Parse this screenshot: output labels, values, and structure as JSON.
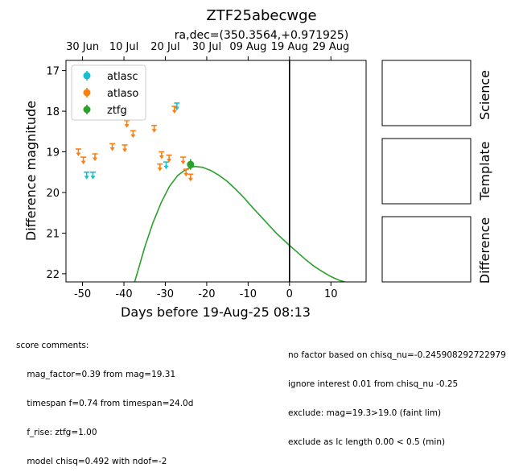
{
  "chart_data": {
    "type": "scatter",
    "title": "ZTF25abecwge",
    "subtitle": "ra,dec=(350.3564,+0.971925)",
    "xlabel": "Days before 19-Aug-25 08:13",
    "ylabel": "Difference magnitude",
    "xlim": [
      -54,
      18.5
    ],
    "ylim": [
      22.2,
      16.75
    ],
    "x_ticks": [
      -50,
      -40,
      -30,
      -20,
      -10,
      0,
      10
    ],
    "y_ticks": [
      17,
      18,
      19,
      20,
      21,
      22
    ],
    "top_ticks": [
      {
        "label": "30 Jun",
        "x": -50
      },
      {
        "label": "10 Jul",
        "x": -40
      },
      {
        "label": "20 Jul",
        "x": -30
      },
      {
        "label": "30 Jul",
        "x": -20
      },
      {
        "label": "09 Aug",
        "x": -10
      },
      {
        "label": "19 Aug",
        "x": 0
      },
      {
        "label": "29 Aug",
        "x": 10
      }
    ],
    "vline_x": 0,
    "legend_position": "upper left",
    "series": [
      {
        "name": "atlasc",
        "color": "#17becf",
        "kind": "upper_limit",
        "points": [
          [
            -49.0,
            19.5
          ],
          [
            -47.5,
            19.5
          ],
          [
            -29.8,
            19.25
          ],
          [
            -27.2,
            17.8
          ]
        ]
      },
      {
        "name": "atlaso",
        "color": "#ff7f0e",
        "kind": "upper_limit",
        "points": [
          [
            -51.0,
            18.93
          ],
          [
            -49.8,
            19.13
          ],
          [
            -47.0,
            19.05
          ],
          [
            -42.8,
            18.8
          ],
          [
            -39.8,
            18.83
          ],
          [
            -39.3,
            18.23
          ],
          [
            -37.8,
            18.48
          ],
          [
            -32.7,
            18.35
          ],
          [
            -31.3,
            19.3
          ],
          [
            -30.9,
            19.0
          ],
          [
            -29.1,
            19.08
          ],
          [
            -27.8,
            17.88
          ],
          [
            -25.7,
            19.13
          ],
          [
            -25.0,
            19.43
          ],
          [
            -23.9,
            19.55
          ]
        ]
      },
      {
        "name": "ztfg",
        "color": "#2ca02c",
        "kind": "detection",
        "points": [
          [
            -23.9,
            19.31
          ]
        ],
        "errors": [
          0.13
        ]
      }
    ],
    "model": {
      "color": "#2ca02c",
      "curve": [
        [
          -37.4,
          22.2
        ],
        [
          -35,
          21.35
        ],
        [
          -33,
          20.75
        ],
        [
          -31,
          20.25
        ],
        [
          -29,
          19.85
        ],
        [
          -27,
          19.58
        ],
        [
          -25,
          19.43
        ],
        [
          -23,
          19.36
        ],
        [
          -21,
          19.38
        ],
        [
          -19,
          19.46
        ],
        [
          -17,
          19.58
        ],
        [
          -15,
          19.73
        ],
        [
          -13,
          19.92
        ],
        [
          -11,
          20.13
        ],
        [
          -9,
          20.36
        ],
        [
          -7,
          20.58
        ],
        [
          -5,
          20.8
        ],
        [
          -3,
          21.02
        ],
        [
          0,
          21.3
        ],
        [
          2,
          21.48
        ],
        [
          4,
          21.66
        ],
        [
          6,
          21.82
        ],
        [
          8,
          21.95
        ],
        [
          10,
          22.07
        ],
        [
          12,
          22.16
        ],
        [
          14,
          22.22
        ]
      ]
    }
  },
  "panels": {
    "science": "Science",
    "template": "Template",
    "difference": "Difference"
  },
  "comments": {
    "left": [
      "score comments:",
      "    mag_factor=0.39 from mag=19.31",
      "    timespan f=0.74 from timespan=24.0d",
      "    f_rise: ztfg=1.00",
      "    model chisq=0.492 with ndof=-2"
    ],
    "right": [
      "no factor based on chisq_nu=-0.245908292722979",
      "ignore interest 0.01 from chisq_nu -0.25",
      "exclude: mag=19.3>19.0 (faint lim)",
      "exclude as lc length 0.00 < 0.5 (min)"
    ]
  }
}
